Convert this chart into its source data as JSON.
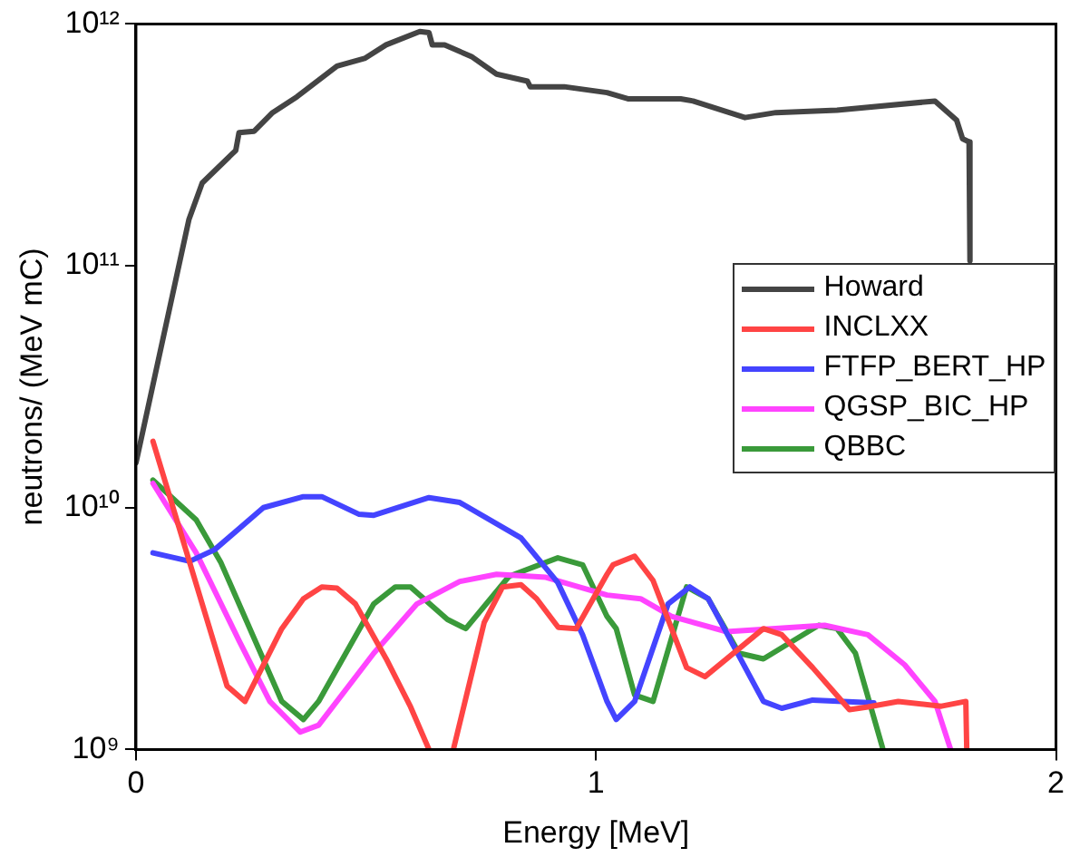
{
  "chart_data": {
    "type": "line",
    "xlabel": "Energy [MeV]",
    "ylabel": "neutrons/ (MeV mC)",
    "log": "y",
    "xlim": [
      0,
      2
    ],
    "xticks": [
      0,
      1,
      2
    ],
    "ylim": [
      1000000000.0,
      1000000000000.0
    ],
    "yticks": [
      {
        "value": 1000000000.0,
        "label": "10⁹"
      },
      {
        "value": 10000000000.0,
        "label": "10¹⁰"
      },
      {
        "value": 100000000000.0,
        "label": "10¹¹"
      },
      {
        "value": 1000000000000.0,
        "label": "10¹²"
      }
    ],
    "grid": false,
    "legend": "right",
    "marker": "none",
    "line_style": "solid",
    "series": [
      {
        "name": "Howard",
        "color": "#444444",
        "x": [
          0,
          0.115,
          0.144,
          0.217,
          0.224,
          0.257,
          0.297,
          0.35,
          0.437,
          0.497,
          0.544,
          0.617,
          0.637,
          0.644,
          0.671,
          0.731,
          0.784,
          0.851,
          0.857,
          0.931,
          1.024,
          1.071,
          1.184,
          1.211,
          1.324,
          1.391,
          1.524,
          1.737,
          1.784,
          1.797,
          1.811,
          1.813
        ],
        "values": [
          15300000000.0,
          155000000000.0,
          220000000000.0,
          300000000000.0,
          355000000000.0,
          360000000000.0,
          430000000000.0,
          500000000000.0,
          670000000000.0,
          720000000000.0,
          820000000000.0,
          930000000000.0,
          920000000000.0,
          820000000000.0,
          820000000000.0,
          730000000000.0,
          620000000000.0,
          580000000000.0,
          550000000000.0,
          550000000000.0,
          520000000000.0,
          490000000000.0,
          490000000000.0,
          480000000000.0,
          410000000000.0,
          430000000000.0,
          440000000000.0,
          480000000000.0,
          400000000000.0,
          335000000000.0,
          325000000000.0,
          105000000000.0
        ]
      },
      {
        "name": "INCLXX",
        "color": "#ff4444",
        "x": [
          0.037,
          0.198,
          0.237,
          0.317,
          0.364,
          0.404,
          0.437,
          0.477,
          0.544,
          0.597,
          0.637,
          0.66,
          0.69,
          0.757,
          0.797,
          0.837,
          0.871,
          0.918,
          0.957,
          1.024,
          1.037,
          1.084,
          1.124,
          1.197,
          1.237,
          1.364,
          1.404,
          1.471,
          1.551,
          1.591,
          1.657,
          1.751,
          1.804,
          1.806
        ],
        "values": [
          18800000000.0,
          1830000000.0,
          1580000000.0,
          3160000000.0,
          4200000000.0,
          4700000000.0,
          4650000000.0,
          4000000000.0,
          2370000000.0,
          1500000000.0,
          1000000000.0,
          null,
          1000000000.0,
          3350000000.0,
          4700000000.0,
          4800000000.0,
          4200000000.0,
          3200000000.0,
          3160000000.0,
          5300000000.0,
          5800000000.0,
          6300000000.0,
          5000000000.0,
          2180000000.0,
          2000000000.0,
          3160000000.0,
          2980000000.0,
          2180000000.0,
          1460000000.0,
          1500000000.0,
          1580000000.0,
          1510000000.0,
          1580000000.0,
          1000000000.0
        ]
      },
      {
        "name": "FTFP_BERT_HP",
        "color": "#4444ff",
        "x": [
          0.037,
          0.117,
          0.171,
          0.277,
          0.364,
          0.404,
          0.484,
          0.517,
          0.637,
          0.704,
          0.837,
          0.917,
          0.971,
          1.024,
          1.044,
          1.084,
          1.157,
          1.204,
          1.244,
          1.364,
          1.404,
          1.471,
          1.604
        ],
        "values": [
          6500000000.0,
          6000000000.0,
          6700000000.0,
          10000000000.0,
          11100000000.0,
          11100000000.0,
          9400000000.0,
          9300000000.0,
          11000000000.0,
          10500000000.0,
          7500000000.0,
          4900000000.0,
          2980000000.0,
          1580000000.0,
          1330000000.0,
          1580000000.0,
          4000000000.0,
          4700000000.0,
          4200000000.0,
          1580000000.0,
          1480000000.0,
          1600000000.0,
          1560000000.0
        ]
      },
      {
        "name": "QGSP_BIC_HP",
        "color": "#ff44ff",
        "x": [
          0.037,
          0.131,
          0.224,
          0.291,
          0.357,
          0.397,
          0.517,
          0.611,
          0.704,
          0.784,
          0.891,
          1.024,
          1.097,
          1.164,
          1.284,
          1.497,
          1.591,
          1.671,
          1.737,
          1.771
        ],
        "values": [
          12600000000.0,
          6500000000.0,
          2820000000.0,
          1580000000.0,
          1180000000.0,
          1260000000.0,
          2500000000.0,
          4000000000.0,
          4950000000.0,
          5300000000.0,
          5150000000.0,
          4350000000.0,
          4200000000.0,
          3550000000.0,
          3070000000.0,
          3260000000.0,
          2980000000.0,
          2240000000.0,
          1580000000.0,
          1000000000.0
        ]
      },
      {
        "name": "QBBC",
        "color": "#3a9a3a",
        "x": [
          0.037,
          0.131,
          0.184,
          0.317,
          0.364,
          0.397,
          0.517,
          0.564,
          0.597,
          0.677,
          0.717,
          0.811,
          0.917,
          0.971,
          1.024,
          1.044,
          1.084,
          1.124,
          1.197,
          1.244,
          1.311,
          1.364,
          1.484,
          1.524,
          1.564,
          1.624
        ],
        "values": [
          13000000000.0,
          8900000000.0,
          5960000000.0,
          1580000000.0,
          1330000000.0,
          1580000000.0,
          4000000000.0,
          4700000000.0,
          4700000000.0,
          3450000000.0,
          3160000000.0,
          5200000000.0,
          6200000000.0,
          5800000000.0,
          3550000000.0,
          3160000000.0,
          1680000000.0,
          1580000000.0,
          4700000000.0,
          4200000000.0,
          2500000000.0,
          2370000000.0,
          3260000000.0,
          3160000000.0,
          2500000000.0,
          1000000000.0
        ]
      }
    ]
  }
}
